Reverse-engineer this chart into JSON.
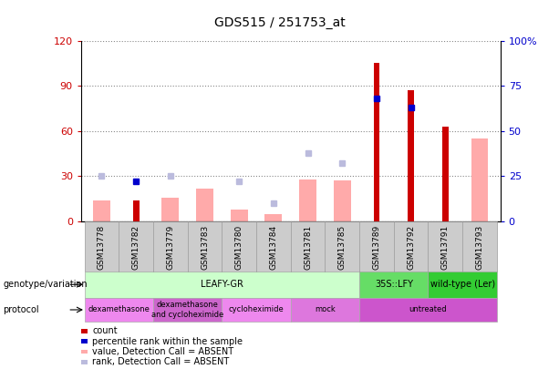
{
  "title": "GDS515 / 251753_at",
  "samples": [
    "GSM13778",
    "GSM13782",
    "GSM13779",
    "GSM13783",
    "GSM13780",
    "GSM13784",
    "GSM13781",
    "GSM13785",
    "GSM13789",
    "GSM13792",
    "GSM13791",
    "GSM13793"
  ],
  "count": [
    null,
    14,
    null,
    null,
    null,
    null,
    null,
    null,
    105,
    87,
    63,
    null
  ],
  "percentile_rank": [
    null,
    22,
    null,
    null,
    null,
    null,
    null,
    null,
    68,
    63,
    null,
    null
  ],
  "value_absent": [
    14,
    null,
    16,
    22,
    8,
    5,
    28,
    27,
    null,
    null,
    null,
    55
  ],
  "rank_absent": [
    25,
    null,
    25,
    null,
    22,
    10,
    38,
    32,
    null,
    null,
    null,
    null
  ],
  "ylim_left": [
    0,
    120
  ],
  "ylim_right": [
    0,
    100
  ],
  "yticks_left": [
    0,
    30,
    60,
    90,
    120
  ],
  "yticks_right": [
    0,
    25,
    50,
    75,
    100
  ],
  "ytick_labels_right": [
    "0",
    "25",
    "50",
    "75",
    "100%"
  ],
  "ytick_labels_left": [
    "0",
    "30",
    "60",
    "90",
    "120"
  ],
  "left_axis_color": "#cc0000",
  "right_axis_color": "#0000cc",
  "count_color": "#cc0000",
  "percentile_color": "#0000cc",
  "value_absent_color": "#ffaaaa",
  "rank_absent_color": "#bbbbdd",
  "genotype_groups": [
    {
      "label": "LEAFY-GR",
      "start": 0,
      "end": 8,
      "color": "#ccffcc"
    },
    {
      "label": "35S::LFY",
      "start": 8,
      "end": 10,
      "color": "#66dd66"
    },
    {
      "label": "wild-type (Ler)",
      "start": 10,
      "end": 12,
      "color": "#33cc33"
    }
  ],
  "protocol_groups": [
    {
      "label": "dexamethasone",
      "start": 0,
      "end": 2,
      "color": "#ee88ee"
    },
    {
      "label": "dexamethasone\nand cycloheximide",
      "start": 2,
      "end": 4,
      "color": "#cc66cc"
    },
    {
      "label": "cycloheximide",
      "start": 4,
      "end": 6,
      "color": "#ee88ee"
    },
    {
      "label": "mock",
      "start": 6,
      "end": 8,
      "color": "#dd77dd"
    },
    {
      "label": "untreated",
      "start": 8,
      "end": 12,
      "color": "#cc55cc"
    }
  ],
  "legend_items": [
    {
      "label": "count",
      "color": "#cc0000"
    },
    {
      "label": "percentile rank within the sample",
      "color": "#0000cc"
    },
    {
      "label": "value, Detection Call = ABSENT",
      "color": "#ffaaaa"
    },
    {
      "label": "rank, Detection Call = ABSENT",
      "color": "#bbbbdd"
    }
  ]
}
